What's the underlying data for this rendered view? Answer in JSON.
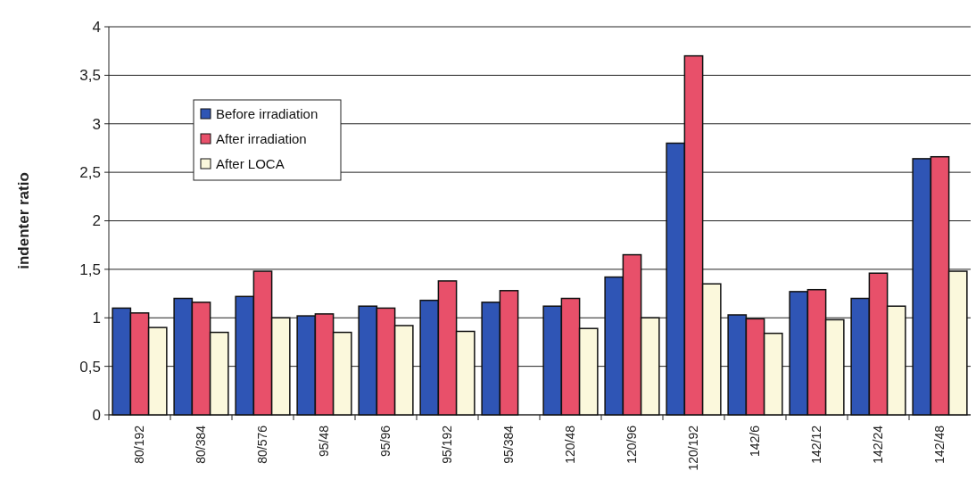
{
  "chart_data": {
    "type": "bar",
    "ylabel": "indenter ratio",
    "categories": [
      "80/192",
      "80/384",
      "80/576",
      "95/48",
      "95/96",
      "95/192",
      "95/384",
      "120/48",
      "120/96",
      "120/192",
      "142/6",
      "142/12",
      "142/24",
      "142/48"
    ],
    "series": [
      {
        "name": "Before irradiation",
        "color": "#2f55b5",
        "values": [
          1.1,
          1.2,
          1.22,
          1.02,
          1.12,
          1.18,
          1.16,
          1.12,
          1.42,
          2.8,
          1.03,
          1.27,
          1.2,
          2.64
        ]
      },
      {
        "name": "After irradiation",
        "color": "#e8506a",
        "values": [
          1.05,
          1.16,
          1.48,
          1.04,
          1.1,
          1.38,
          1.28,
          1.2,
          1.65,
          3.7,
          0.99,
          1.29,
          1.46,
          2.66
        ]
      },
      {
        "name": "After LOCA",
        "color": "#fbf8dc",
        "values": [
          0.9,
          0.85,
          1.0,
          0.85,
          0.92,
          0.86,
          null,
          0.89,
          1.0,
          1.35,
          0.84,
          0.98,
          1.12,
          1.48
        ]
      }
    ],
    "ylim": [
      0,
      4
    ],
    "yticks": [
      0,
      {
        "value": 0.5,
        "label": "0,5"
      },
      1,
      {
        "value": 1.5,
        "label": "1,5"
      },
      2,
      {
        "value": 2.5,
        "label": "2,5"
      },
      3,
      {
        "value": 3.5,
        "label": "3,5"
      },
      4
    ],
    "grid": "y",
    "legend": "top left"
  }
}
